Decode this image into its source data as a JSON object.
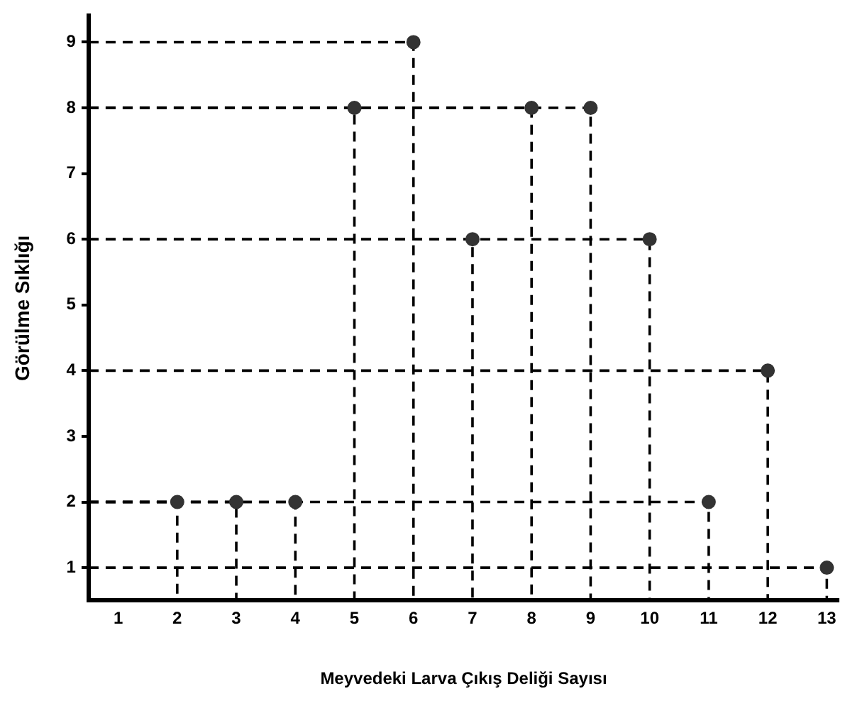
{
  "chart_data": {
    "type": "scatter",
    "xlabel": "Meyvedeki Larva Çıkış Deliği Sayısı",
    "ylabel": "Görülme Sıklığı",
    "x": [
      2,
      3,
      4,
      5,
      6,
      7,
      8,
      9,
      10,
      11,
      12,
      13
    ],
    "series": [
      {
        "type": "line",
        "color": "#000000",
        "line_style": "dashed",
        "marker": "none",
        "x": [
          0.5,
          2,
          2
        ],
        "values": [
          2,
          2,
          0.5
        ]
      },
      {
        "type": "line",
        "color": "#000000",
        "line_style": "dashed",
        "marker": "none",
        "x": [
          0.5,
          3,
          3
        ],
        "values": [
          2,
          2,
          0.5
        ]
      },
      {
        "type": "line",
        "color": "#000000",
        "line_style": "dashed",
        "marker": "none",
        "x": [
          0.5,
          4,
          4
        ],
        "values": [
          2,
          2,
          0.5
        ]
      },
      {
        "type": "line",
        "color": "#000000",
        "line_style": "dashed",
        "marker": "none",
        "x": [
          0.5,
          5,
          5
        ],
        "values": [
          8,
          8,
          0.5
        ]
      },
      {
        "type": "line",
        "color": "#000000",
        "line_style": "dashed",
        "marker": "none",
        "x": [
          0.5,
          6,
          6
        ],
        "values": [
          9,
          9,
          0.5
        ]
      },
      {
        "type": "line",
        "color": "#000000",
        "line_style": "dashed",
        "marker": "none",
        "x": [
          0.5,
          7,
          7
        ],
        "values": [
          6,
          6,
          0.5
        ]
      },
      {
        "type": "line",
        "color": "#000000",
        "line_style": "dashed",
        "marker": "none",
        "x": [
          0.5,
          8,
          8
        ],
        "values": [
          8,
          8,
          0.5
        ]
      },
      {
        "type": "line",
        "color": "#000000",
        "line_style": "dashed",
        "marker": "none",
        "x": [
          0.5,
          9,
          9
        ],
        "values": [
          8,
          8,
          0.5
        ]
      },
      {
        "type": "line",
        "color": "#000000",
        "line_style": "dashed",
        "marker": "none",
        "x": [
          0.5,
          10,
          10
        ],
        "values": [
          6,
          6,
          0.5
        ]
      },
      {
        "type": "line",
        "color": "#000000",
        "line_style": "dashed",
        "marker": "none",
        "x": [
          0.5,
          11,
          11
        ],
        "values": [
          2,
          2,
          0.5
        ]
      },
      {
        "type": "line",
        "color": "#000000",
        "line_style": "dashed",
        "marker": "none",
        "x": [
          0.5,
          12,
          12
        ],
        "values": [
          4,
          4,
          0.5
        ]
      },
      {
        "type": "line",
        "color": "#000000",
        "line_style": "dashed",
        "marker": "none",
        "x": [
          0.5,
          13,
          13
        ],
        "values": [
          1,
          1,
          0.5
        ]
      },
      {
        "color": "#333333",
        "values": [
          2,
          2,
          2,
          8,
          9,
          6,
          8,
          8,
          6,
          2,
          4,
          1
        ]
      }
    ],
    "xlim": [
      0.5,
      13.2
    ],
    "xticks": [
      1,
      2,
      3,
      4,
      5,
      6,
      7,
      8,
      9,
      10,
      11,
      12,
      13
    ],
    "ylim": [
      0.5,
      9.4
    ],
    "yticks": [
      1,
      2,
      3,
      4,
      5,
      6,
      7,
      8,
      9
    ],
    "legend": false,
    "marker": "circle"
  }
}
